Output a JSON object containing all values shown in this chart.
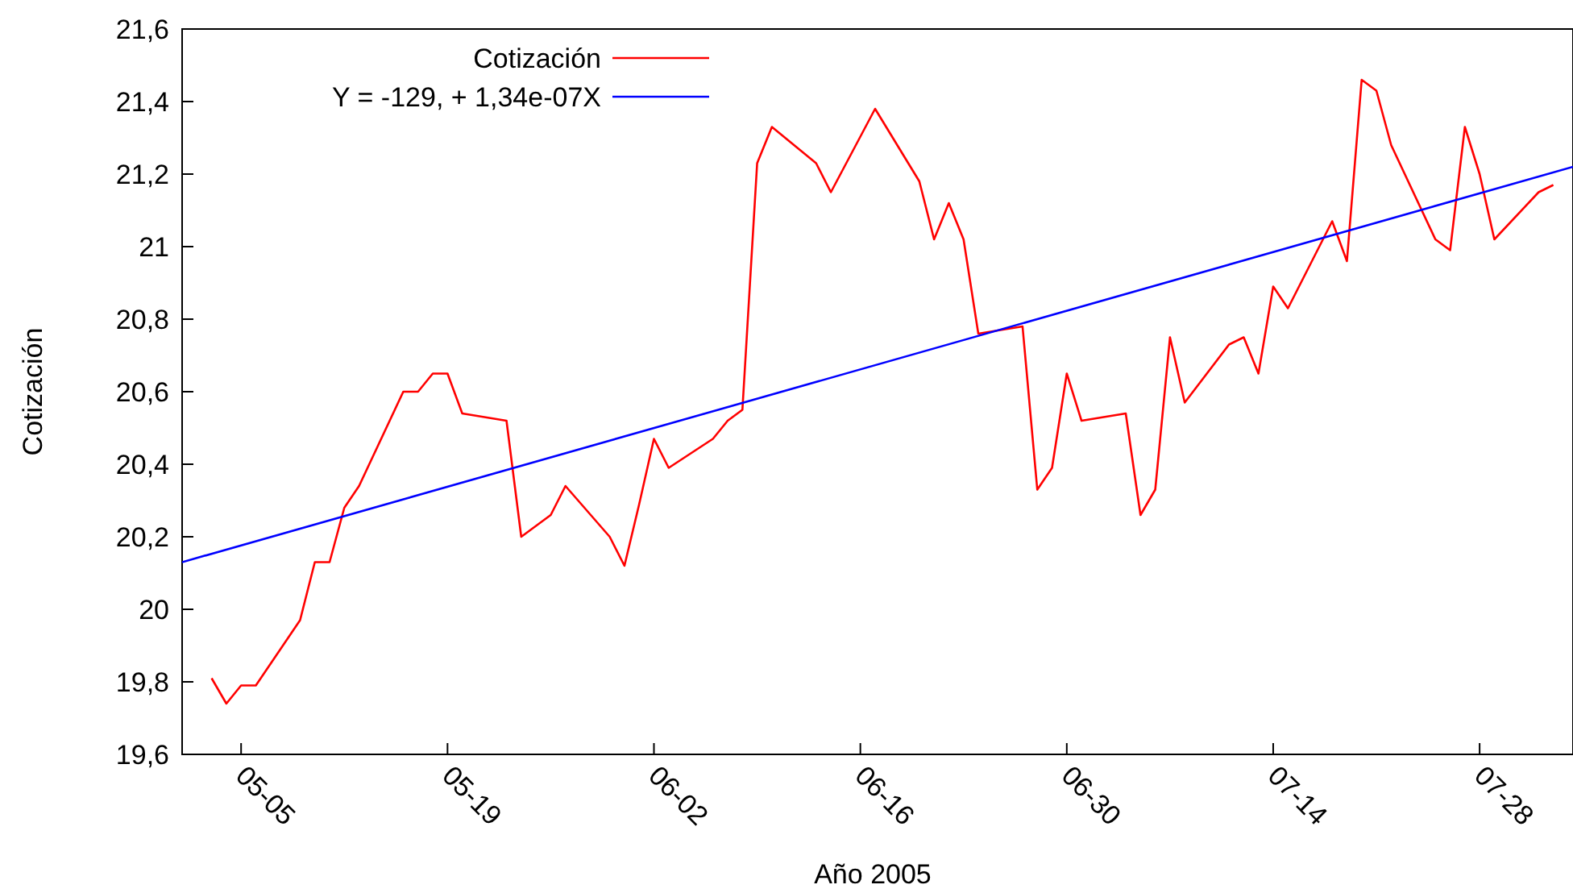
{
  "chart_data": {
    "type": "line",
    "xlabel": "Año 2005",
    "ylabel": "Cotización",
    "xlim": [
      "2005-05-01",
      "2005-08-03T08:00"
    ],
    "xticks": [
      {
        "value": "2005-05-05",
        "label": "05-05"
      },
      {
        "value": "2005-05-19",
        "label": "05-19"
      },
      {
        "value": "2005-06-02",
        "label": "06-02"
      },
      {
        "value": "2005-06-16",
        "label": "06-16"
      },
      {
        "value": "2005-06-30",
        "label": "06-30"
      },
      {
        "value": "2005-07-14",
        "label": "07-14"
      },
      {
        "value": "2005-07-28",
        "label": "07-28"
      }
    ],
    "ylim": [
      19.6,
      21.6
    ],
    "yticks": [
      {
        "value": 19.6,
        "label": "19,6"
      },
      {
        "value": 19.8,
        "label": "19,8"
      },
      20,
      {
        "value": 20.2,
        "label": "20,2"
      },
      {
        "value": 20.4,
        "label": "20,4"
      },
      {
        "value": 20.6,
        "label": "20,6"
      },
      {
        "value": 20.8,
        "label": "20,8"
      },
      21,
      {
        "value": 21.2,
        "label": "21,2"
      },
      {
        "value": 21.4,
        "label": "21,4"
      },
      {
        "value": 21.6,
        "label": "21,6"
      }
    ],
    "grid": false,
    "legend": "top",
    "marker": "none",
    "line_style": "solid",
    "series": [
      {
        "name": "Cotización",
        "color": "#ff0000",
        "x": [
          "2005-05-03",
          "2005-05-04",
          "2005-05-05",
          "2005-05-06",
          "2005-05-09",
          "2005-05-10",
          "2005-05-11",
          "2005-05-12",
          "2005-05-13",
          "2005-05-16",
          "2005-05-17",
          "2005-05-18",
          "2005-05-19",
          "2005-05-20",
          "2005-05-23",
          "2005-05-24",
          "2005-05-26",
          "2005-05-27",
          "2005-05-30",
          "2005-05-31",
          "2005-06-01",
          "2005-06-02",
          "2005-06-03",
          "2005-06-06",
          "2005-06-07",
          "2005-06-08",
          "2005-06-09",
          "2005-06-10",
          "2005-06-13",
          "2005-06-14",
          "2005-06-17",
          "2005-06-20",
          "2005-06-21",
          "2005-06-22",
          "2005-06-23",
          "2005-06-24",
          "2005-06-27",
          "2005-06-28",
          "2005-06-29",
          "2005-06-30",
          "2005-07-01",
          "2005-07-04",
          "2005-07-05",
          "2005-07-06",
          "2005-07-07",
          "2005-07-08",
          "2005-07-11",
          "2005-07-12",
          "2005-07-13",
          "2005-07-14",
          "2005-07-15",
          "2005-07-18",
          "2005-07-19",
          "2005-07-20",
          "2005-07-21",
          "2005-07-22",
          "2005-07-25",
          "2005-07-26",
          "2005-07-27",
          "2005-07-28",
          "2005-07-29",
          "2005-08-01",
          "2005-08-02"
        ],
        "values": [
          19.81,
          19.74,
          19.79,
          19.79,
          19.97,
          20.13,
          20.13,
          20.28,
          20.34,
          20.6,
          20.6,
          20.65,
          20.65,
          20.54,
          20.52,
          20.2,
          20.26,
          20.34,
          20.2,
          20.12,
          20.29,
          20.47,
          20.39,
          20.47,
          20.52,
          20.55,
          21.23,
          21.33,
          21.23,
          21.15,
          21.38,
          21.18,
          21.02,
          21.12,
          21.02,
          20.76,
          20.78,
          20.33,
          20.39,
          20.65,
          20.52,
          20.54,
          20.26,
          20.33,
          20.75,
          20.57,
          20.73,
          20.75,
          20.65,
          20.89,
          20.83,
          21.07,
          20.96,
          21.46,
          21.43,
          21.28,
          21.02,
          20.99,
          21.33,
          21.2,
          21.02,
          21.15,
          21.17
        ]
      },
      {
        "name": "Y = -129, + 1,34e-07X",
        "color": "#0000ff",
        "x": [
          "2005-05-01",
          "2005-08-03T08:00"
        ],
        "values": [
          20.13,
          21.22
        ]
      }
    ]
  }
}
